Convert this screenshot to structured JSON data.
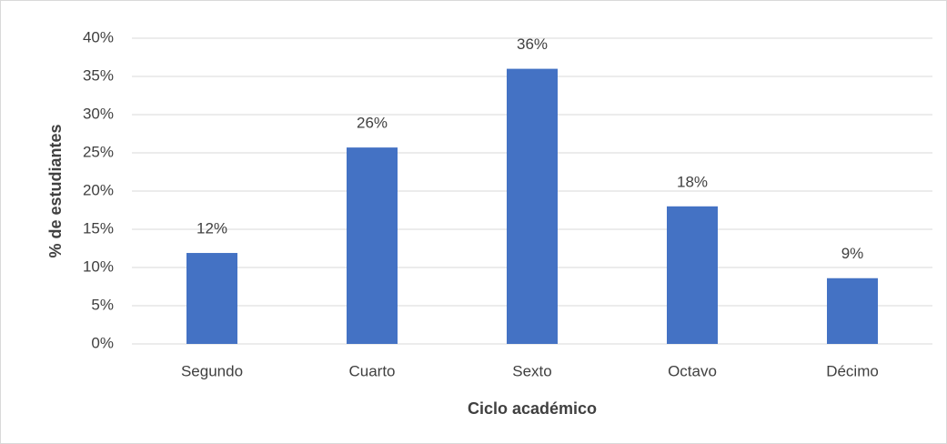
{
  "chart_data": {
    "type": "bar",
    "categories": [
      "Segundo",
      "Cuarto",
      "Sexto",
      "Octavo",
      "Décimo"
    ],
    "values": [
      11.9,
      25.7,
      36.0,
      18.0,
      8.6
    ],
    "value_labels": [
      "12%",
      "26%",
      "36%",
      "18%",
      "9%"
    ],
    "color": "#4472c4",
    "xlabel": "Ciclo académico",
    "ylabel": "% de estudiantes",
    "ylim": [
      0,
      40
    ],
    "yticks": [
      {
        "value": 0,
        "label": "0%"
      },
      {
        "value": 5,
        "label": "5%"
      },
      {
        "value": 10,
        "label": "10%"
      },
      {
        "value": 15,
        "label": "15%"
      },
      {
        "value": 20,
        "label": "20%"
      },
      {
        "value": 25,
        "label": "25%"
      },
      {
        "value": 30,
        "label": "30%"
      },
      {
        "value": 35,
        "label": "35%"
      },
      {
        "value": 40,
        "label": "40%"
      }
    ],
    "grid": true
  }
}
